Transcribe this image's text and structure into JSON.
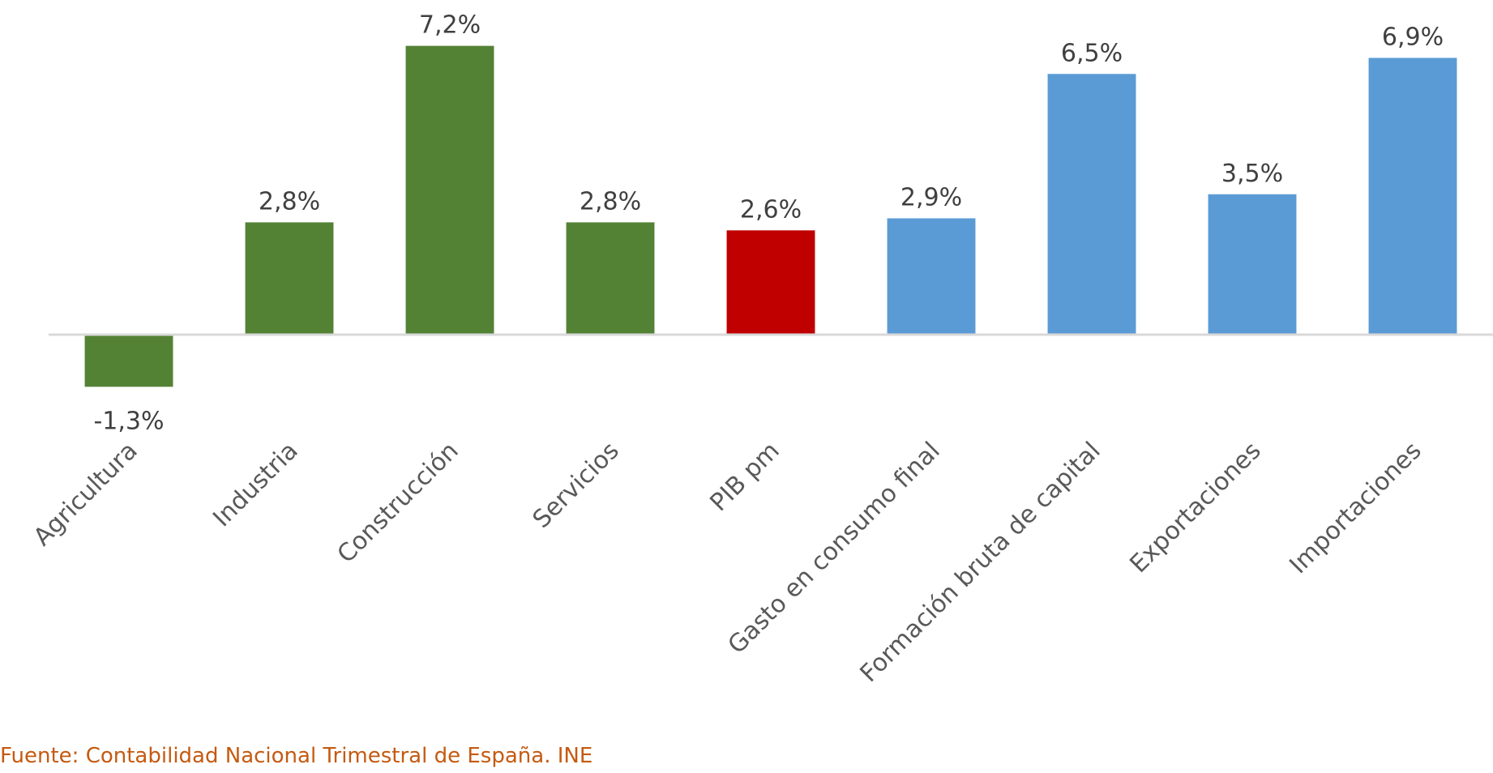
{
  "chart_data": {
    "type": "bar",
    "categories": [
      "Agricultura",
      "Industria",
      "Construcción",
      "Servicios",
      "PIB pm",
      "Gasto en consumo final",
      "Formación bruta de capital",
      "Exportaciones",
      "Importaciones"
    ],
    "values": [
      -1.3,
      2.8,
      7.2,
      2.8,
      2.6,
      2.9,
      6.5,
      3.5,
      6.9
    ],
    "value_labels": [
      "-1,3%",
      "2,8%",
      "7,2%",
      "2,8%",
      "2,6%",
      "2,9%",
      "6,5%",
      "3,5%",
      "6,9%"
    ],
    "bar_colors": [
      "#548235",
      "#548235",
      "#548235",
      "#548235",
      "#c00000",
      "#5b9bd5",
      "#5b9bd5",
      "#5b9bd5",
      "#5b9bd5"
    ],
    "axis_line_color": "#d9d9d9",
    "title": "",
    "xlabel": "",
    "ylabel": "",
    "ylim": [
      -1.3,
      7.2
    ],
    "grid": false,
    "legend": "none"
  },
  "source": {
    "text": "Fuente: Contabilidad Nacional Trimestral de España. INE",
    "color": "#c55a11"
  }
}
